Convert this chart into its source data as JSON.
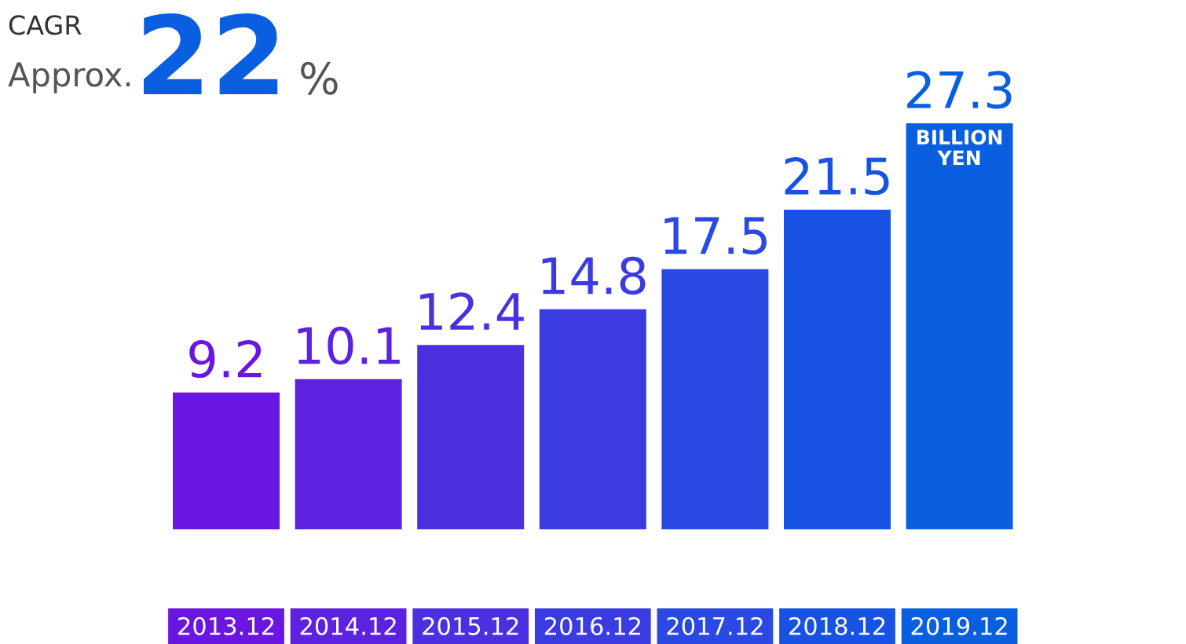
{
  "chart_data": {
    "type": "bar",
    "categories": [
      "2013.12",
      "2014.12",
      "2015.12",
      "2016.12",
      "2017.12",
      "2018.12",
      "2019.12"
    ],
    "values": [
      9.2,
      10.1,
      12.4,
      14.8,
      17.5,
      21.5,
      27.3
    ],
    "colors": [
      "#6b16e0",
      "#5d22e0",
      "#4c30e0",
      "#3a3ce2",
      "#2a48e2",
      "#1752e2",
      "#0a5ee0"
    ],
    "data_labels": true,
    "annotations": [
      "CAGR",
      "Approx.",
      "22",
      "%",
      "BILLION\nYEN"
    ]
  }
}
